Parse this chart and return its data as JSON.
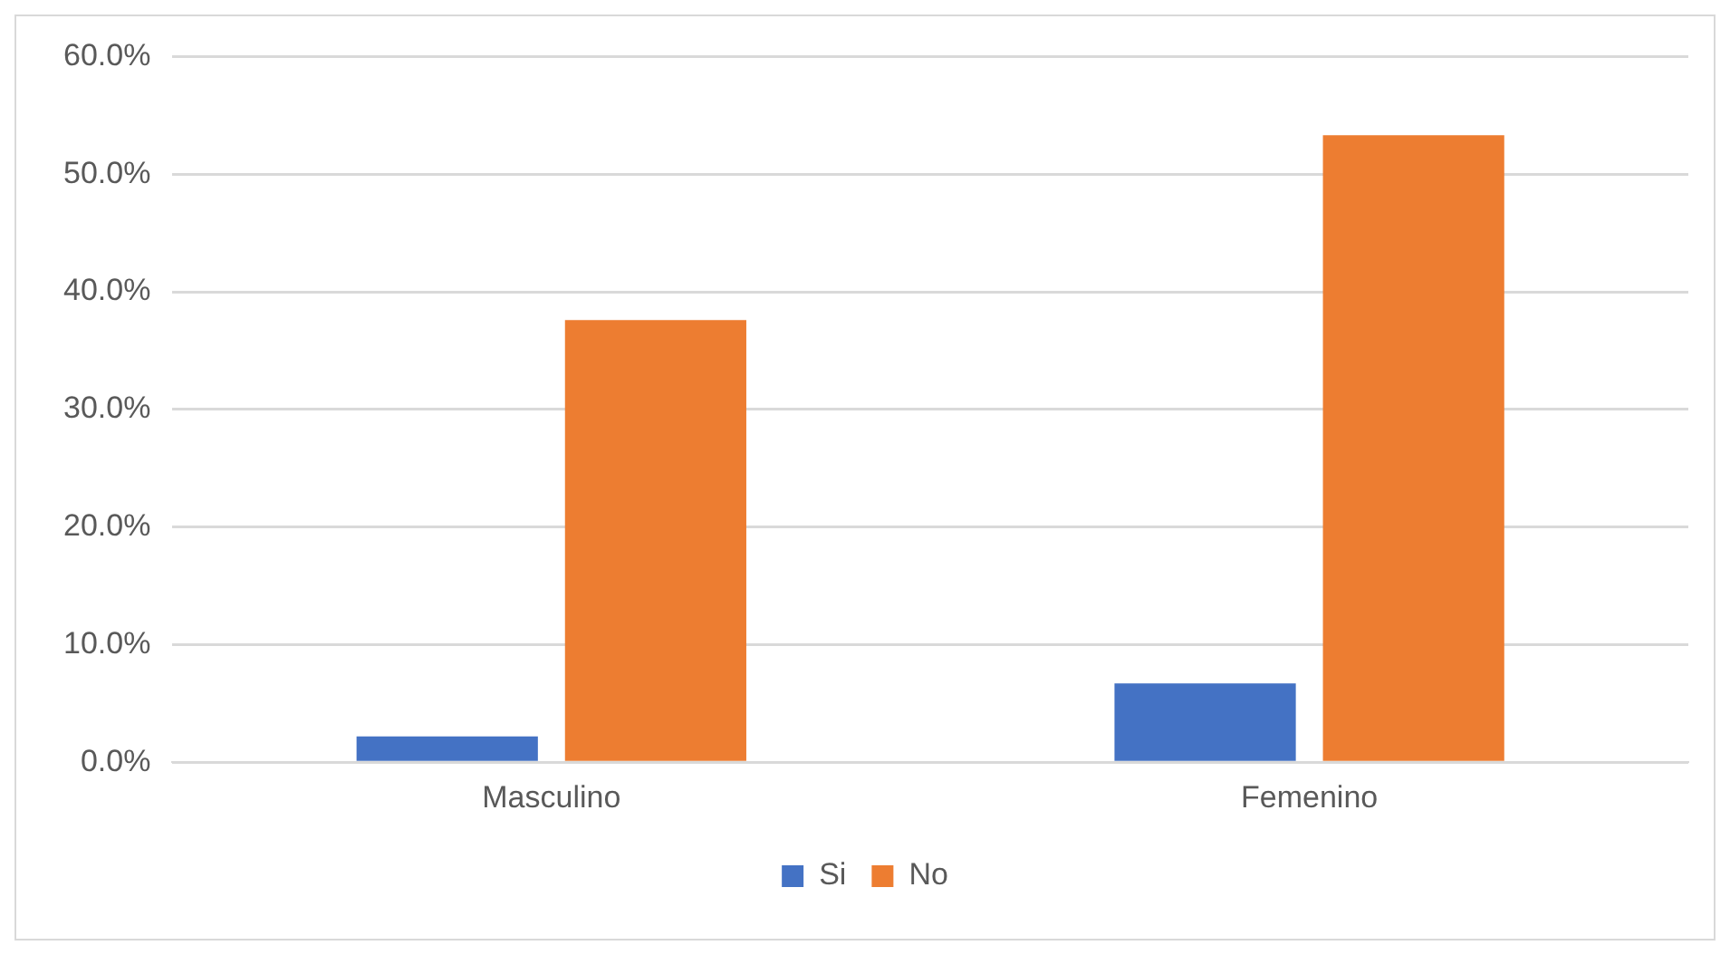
{
  "chart_data": {
    "type": "bar",
    "categories": [
      "Masculino",
      "Femenino"
    ],
    "series": [
      {
        "name": "Si",
        "color": "#4472c4",
        "values": [
          2.2,
          6.7
        ]
      },
      {
        "name": "No",
        "color": "#ed7d31",
        "values": [
          37.6,
          53.3
        ]
      }
    ],
    "ylim": [
      0,
      60
    ],
    "yticks": [
      {
        "value": 0,
        "label": "0.0%"
      },
      {
        "value": 10,
        "label": "10.0%"
      },
      {
        "value": 20,
        "label": "20.0%"
      },
      {
        "value": 30,
        "label": "30.0%"
      },
      {
        "value": 40,
        "label": "40.0%"
      },
      {
        "value": 50,
        "label": "50.0%"
      },
      {
        "value": 60,
        "label": "60.0%"
      }
    ],
    "grid": "y",
    "legend": "bottom"
  }
}
